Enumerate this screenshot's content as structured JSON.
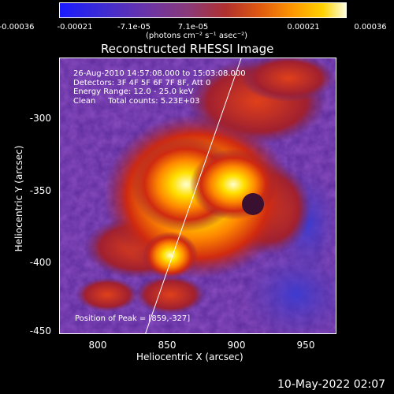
{
  "colorbar": {
    "ticks": [
      "-0.00036",
      "-0.00021",
      "-7.1e-05",
      "7.1e-05",
      "0.00021",
      "0.00036"
    ],
    "units": "(photons cm⁻² s⁻¹ asec⁻²)"
  },
  "title": "Reconstructed RHESSI Image",
  "annotation": {
    "line1": "26-Aug-2010 14:57:08.000 to 15:03:08.000",
    "line2": "Detectors: 3F 4F 5F 6F 7F 8F, Att 0",
    "line3": "Energy Range: 12.0 - 25.0 keV",
    "line4": "Clean     Total counts: 5.23E+03",
    "peak": "Position of Peak = [859,-327]"
  },
  "axes": {
    "xlabel": "Heliocentric X (arcsec)",
    "ylabel": "Heliocentric Y (arcsec)",
    "xticks": [
      "800",
      "850",
      "900",
      "950"
    ],
    "yticks": [
      "-300",
      "-350",
      "-400",
      "-450"
    ]
  },
  "footer": {
    "date": "10-May-2022 02:07"
  }
}
